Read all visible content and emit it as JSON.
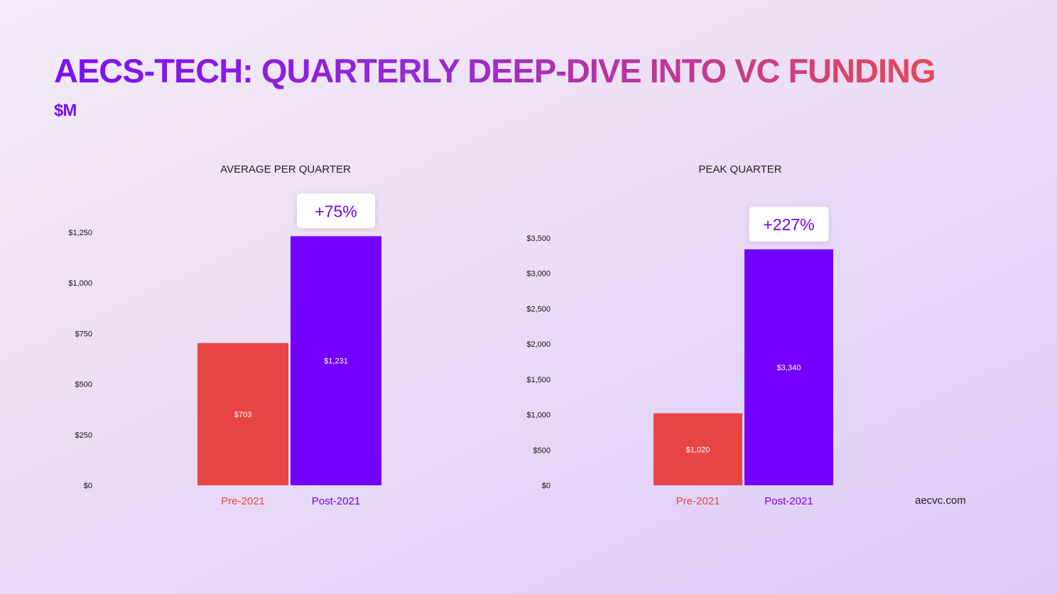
{
  "title": "AECS-TECH: QUARTERLY DEEP-DIVE INTO VC FUNDING",
  "subtitle": "$M",
  "source": "aecvc.com",
  "colors": {
    "pre": "#e84545",
    "post": "#7300ff",
    "tick": "#111111"
  },
  "chart_data": [
    {
      "type": "bar",
      "title": "AVERAGE PER QUARTER",
      "categories": [
        "Pre-2021",
        "Post-2021"
      ],
      "values": [
        703,
        1231
      ],
      "data_labels": [
        "$703",
        "$1,231"
      ],
      "ylim": [
        0,
        1250
      ],
      "yticks": [
        0,
        250,
        500,
        750,
        1000,
        1250
      ],
      "ytick_labels": [
        "$0",
        "$250",
        "$500",
        "$750",
        "$1,000",
        "$1,250"
      ],
      "annotation": "+75%",
      "legend": "none",
      "grid": false
    },
    {
      "type": "bar",
      "title": "PEAK QUARTER",
      "categories": [
        "Pre-2021",
        "Post-2021"
      ],
      "values": [
        1020,
        3340
      ],
      "data_labels": [
        "$1,020",
        "$3,340"
      ],
      "ylim": [
        0,
        3500
      ],
      "yticks": [
        0,
        500,
        1000,
        1500,
        2000,
        2500,
        3000,
        3500
      ],
      "ytick_labels": [
        "$0",
        "$500",
        "$1,000",
        "$1,500",
        "$2,000",
        "$2,500",
        "$3,000",
        "$3,500"
      ],
      "annotation": "+227%",
      "legend": "none",
      "grid": false
    }
  ]
}
